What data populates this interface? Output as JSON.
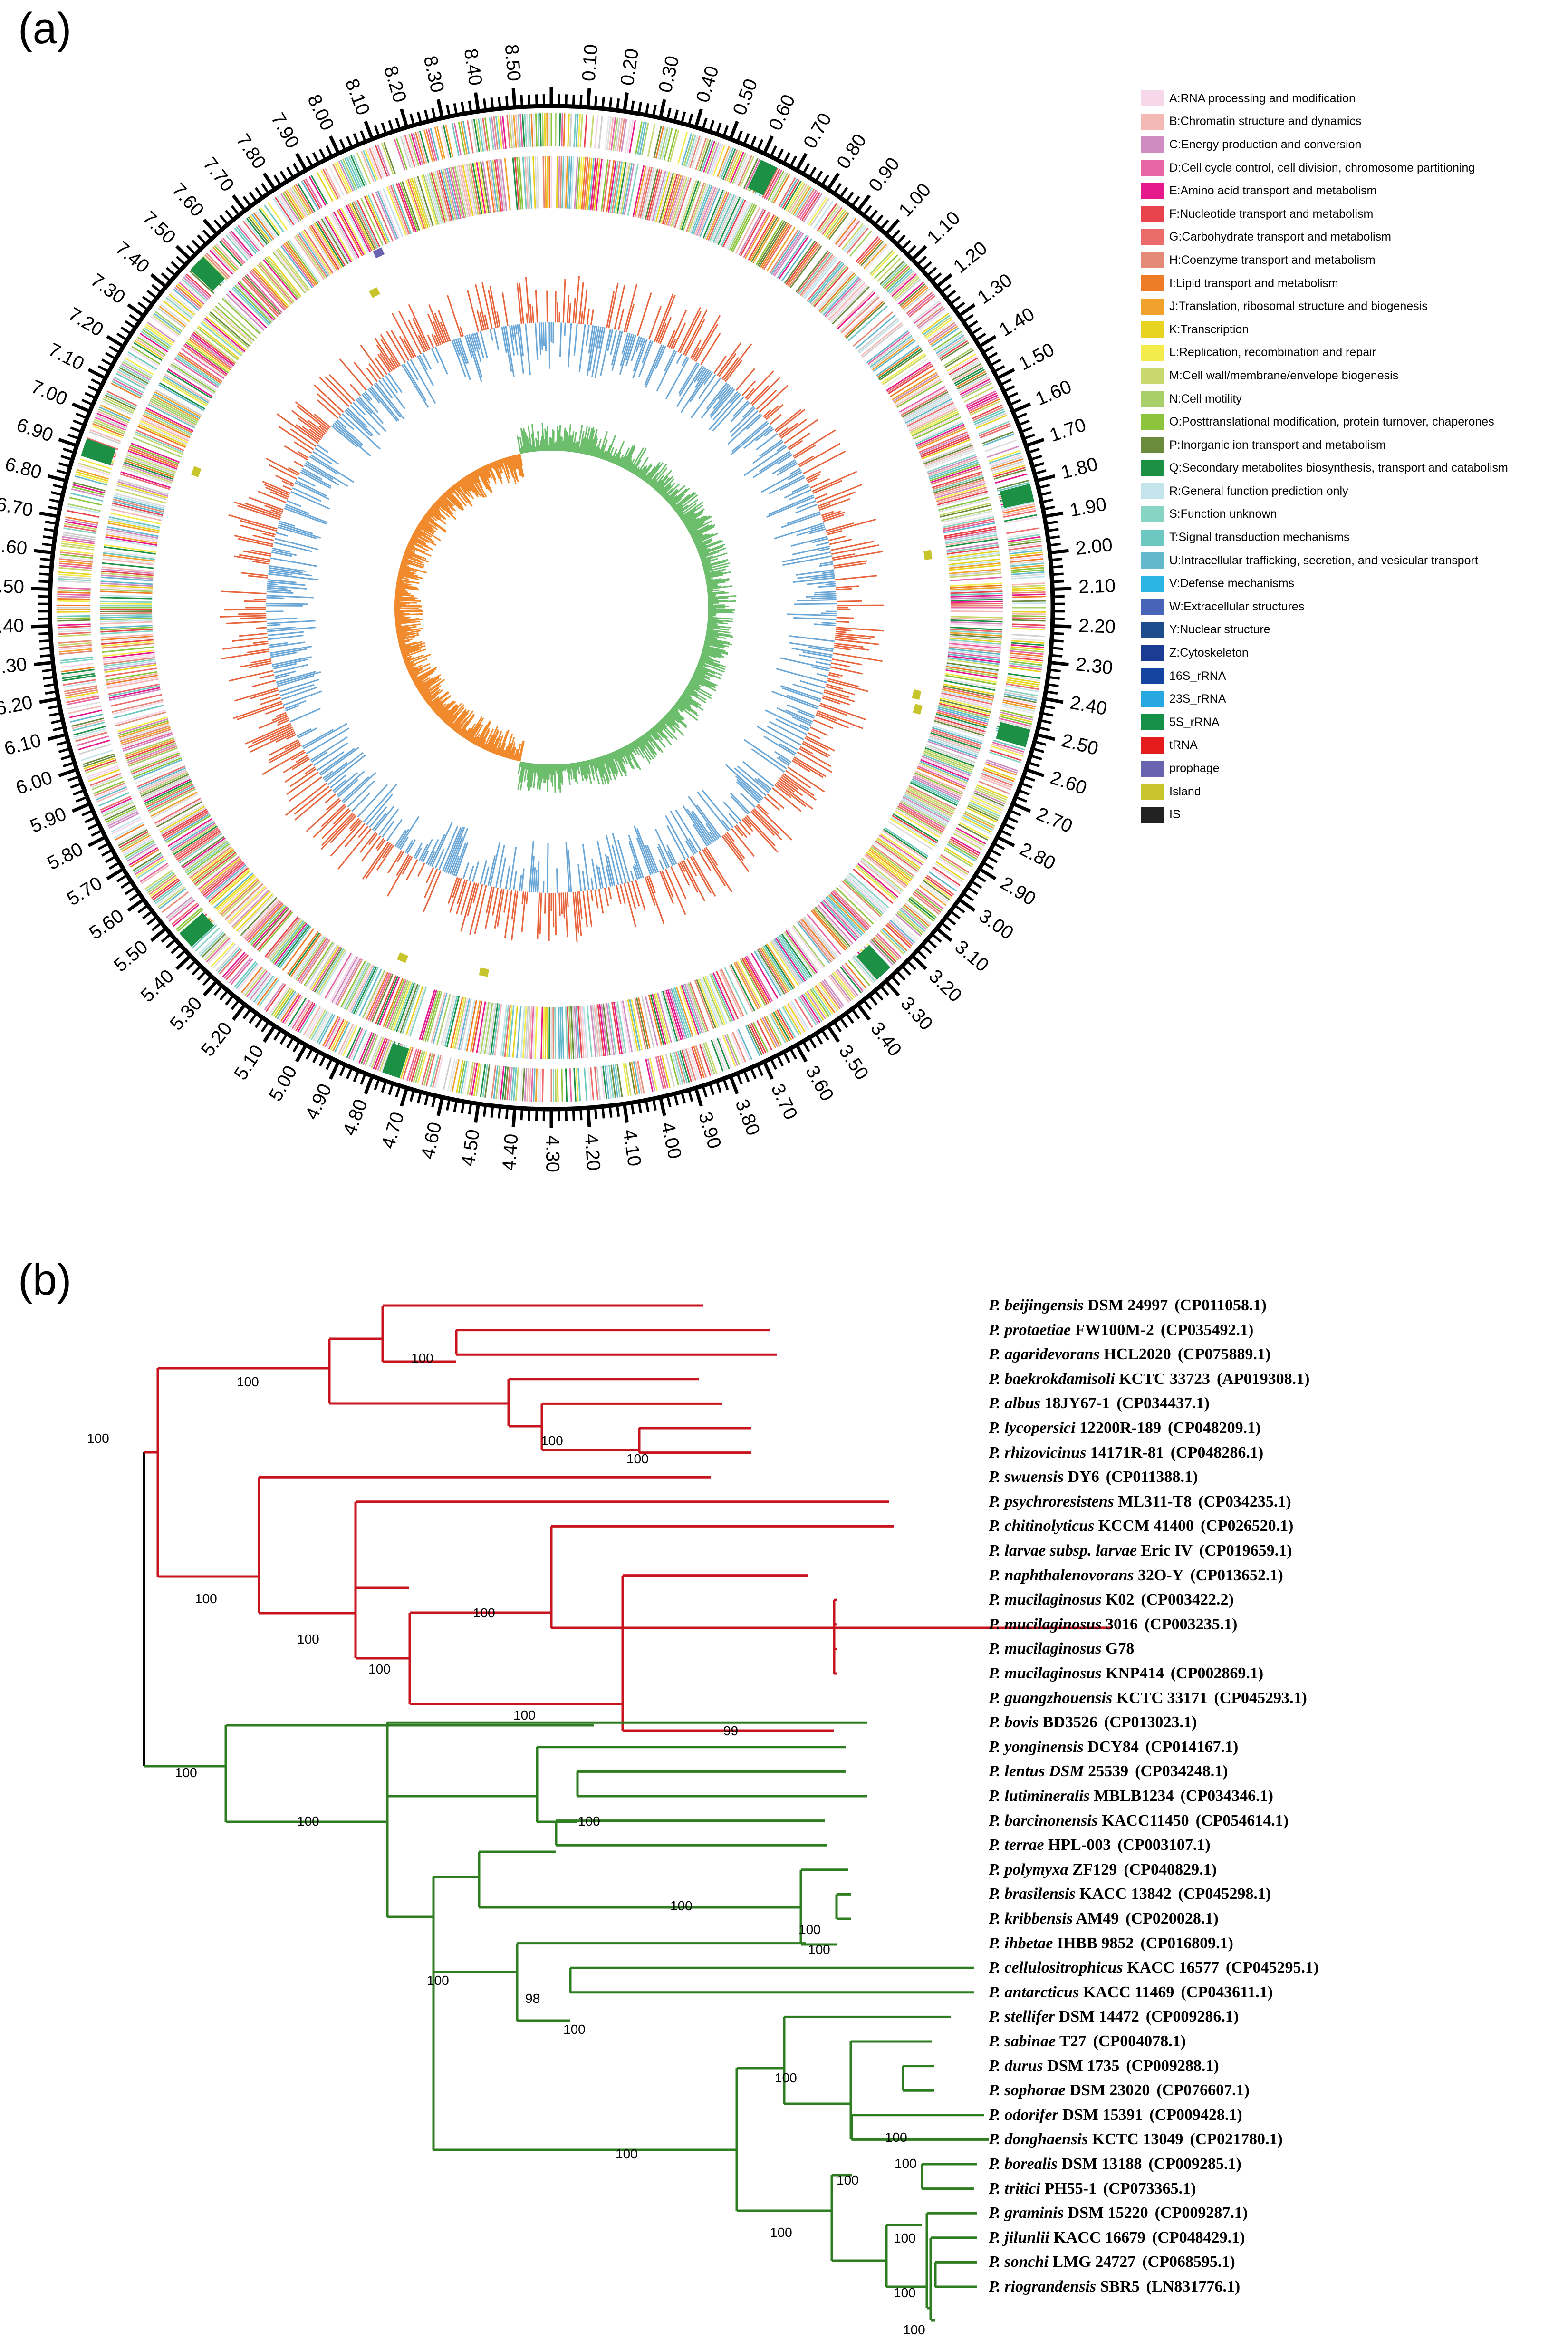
{
  "panel_a": {
    "label": "(a)",
    "ruler_ticks": [
      "0.10",
      "0.20",
      "0.30",
      "0.40",
      "0.50",
      "0.60",
      "0.70",
      "0.80",
      "0.90",
      "1.00",
      "1.10",
      "1.20",
      "1.30",
      "1.40",
      "1.50",
      "1.60",
      "1.70",
      "1.80",
      "1.90",
      "2.00",
      "2.10",
      "2.20",
      "2.30",
      "2.40",
      "2.50",
      "2.60",
      "2.70",
      "2.80",
      "2.90",
      "3.00",
      "3.10",
      "3.20",
      "3.30",
      "3.40",
      "3.50",
      "3.60",
      "3.70",
      "3.80",
      "3.90",
      "4.00",
      "4.10",
      "4.20",
      "4.30",
      "4.40",
      "4.50",
      "4.60",
      "4.70",
      "4.80",
      "4.90",
      "5.00",
      "5.10",
      "5.20",
      "5.30",
      "5.40",
      "5.50",
      "5.60",
      "5.70",
      "5.80",
      "5.90",
      "6.00",
      "6.10",
      "6.20",
      "6.30",
      "6.40",
      "6.50",
      "6.60",
      "6.70",
      "6.80",
      "6.90",
      "7.00",
      "7.10",
      "7.20",
      "7.30",
      "7.40",
      "7.50",
      "7.60",
      "7.70",
      "7.80",
      "7.90",
      "8.00",
      "8.10",
      "8.20",
      "8.30",
      "8.40",
      "8.50"
    ],
    "genome_length_mb": 8.6,
    "ring_colors": {
      "gc_skew_plus": "#e8643c",
      "gc_skew_minus": "#6aa6d6",
      "gc_inner_plus": "#6cbd6c",
      "gc_inner_minus": "#f08a2c",
      "outer_ring": "#000000"
    },
    "legend": [
      {
        "label": "A:RNA processing and modification",
        "color": "#f6d8ea"
      },
      {
        "label": "B:Chromatin structure and dynamics",
        "color": "#f4b9b4"
      },
      {
        "label": "C:Energy production and conversion",
        "color": "#d08cc0"
      },
      {
        "label": "D:Cell cycle control, cell division, chromosome partitioning",
        "color": "#e765a5"
      },
      {
        "label": "E:Amino acid transport and metabolism",
        "color": "#e6198c"
      },
      {
        "label": "F:Nucleotide transport and metabolism",
        "color": "#e8434c"
      },
      {
        "label": "G:Carbohydrate transport and metabolism",
        "color": "#ec6b6b"
      },
      {
        "label": "H:Coenzyme transport and metabolism",
        "color": "#e68a78"
      },
      {
        "label": "I:Lipid transport and metabolism",
        "color": "#ef7d28"
      },
      {
        "label": "J:Translation, ribosomal structure and biogenesis",
        "color": "#f0a22c"
      },
      {
        "label": "K:Transcription",
        "color": "#e8d420"
      },
      {
        "label": "L:Replication, recombination and repair",
        "color": "#f4ec4c"
      },
      {
        "label": "M:Cell wall/membrane/envelope biogenesis",
        "color": "#c8d86c"
      },
      {
        "label": "N:Cell motility",
        "color": "#a8d068"
      },
      {
        "label": "O:Posttranslational modification, protein turnover, chaperones",
        "color": "#8cc43c"
      },
      {
        "label": "P:Inorganic ion transport and metabolism",
        "color": "#6a8a3c"
      },
      {
        "label": "Q:Secondary metabolites biosynthesis, transport and catabolism",
        "color": "#1c9044"
      },
      {
        "label": "R:General function prediction only",
        "color": "#c4e4ec"
      },
      {
        "label": "S:Function unknown",
        "color": "#88d4c4"
      },
      {
        "label": "T:Signal transduction mechanisms",
        "color": "#6cc8c0"
      },
      {
        "label": "U:Intracellular trafficking, secretion, and vesicular transport",
        "color": "#64b8cc"
      },
      {
        "label": "V:Defense mechanisms",
        "color": "#2ab4e4"
      },
      {
        "label": "W:Extracellular structures",
        "color": "#4864b8"
      },
      {
        "label": "Y:Nuclear structure",
        "color": "#1c4c8c"
      },
      {
        "label": "Z:Cytoskeleton",
        "color": "#1c3c94"
      },
      {
        "label": "16S_rRNA",
        "color": "#1444a0"
      },
      {
        "label": "23S_rRNA",
        "color": "#28a8e0"
      },
      {
        "label": "5S_rRNA",
        "color": "#149048"
      },
      {
        "label": "tRNA",
        "color": "#e41c1c"
      },
      {
        "label": "prophage",
        "color": "#6a64b0"
      },
      {
        "label": "Island",
        "color": "#c8c42c"
      },
      {
        "label": "IS",
        "color": "#222222"
      }
    ]
  },
  "panel_b": {
    "label": "(b)",
    "red_color": "#c8141e",
    "green_color": "#2e7d20",
    "root_color": "#000000",
    "taxa": [
      {
        "italic": "P. beijingensis",
        "rest": "DSM 24997",
        "acc": "(CP011058.1)"
      },
      {
        "italic": "P. protaetiae",
        "rest": "FW100M-2",
        "acc": "(CP035492.1)"
      },
      {
        "italic": "P. agaridevorans",
        "rest": "HCL2020",
        "acc": "(CP075889.1)"
      },
      {
        "italic": "P. baekrokdamisoli",
        "rest": "KCTC 33723",
        "acc": "(AP019308.1)"
      },
      {
        "italic": "P. albus",
        "rest": "18JY67-1",
        "acc": "(CP034437.1)"
      },
      {
        "italic": "P. lycopersici",
        "rest": "12200R-189",
        "acc": "(CP048209.1)"
      },
      {
        "italic": "P. rhizovicinus",
        "rest": "14171R-81",
        "acc": "(CP048286.1)"
      },
      {
        "italic": "P. swuensis",
        "rest": "DY6",
        "acc": "(CP011388.1)"
      },
      {
        "italic": "P. psychroresistens",
        "rest": "ML311-T8",
        "acc": "(CP034235.1)"
      },
      {
        "italic": "P. chitinolyticus",
        "rest": "KCCM 41400",
        "acc": "(CP026520.1)"
      },
      {
        "italic": "P. larvae subsp. larvae",
        "rest": "Eric IV",
        "acc": "(CP019659.1)"
      },
      {
        "italic": "P. naphthalenovorans",
        "rest": "32O-Y",
        "acc": "(CP013652.1)"
      },
      {
        "italic": "P. mucilaginosus",
        "rest": "K02",
        "acc": "(CP003422.2)"
      },
      {
        "italic": "P. mucilaginosus",
        "rest": "3016",
        "acc": "(CP003235.1)"
      },
      {
        "italic": "P. mucilaginosus",
        "rest": "G78",
        "acc": ""
      },
      {
        "italic": "P. mucilaginosus",
        "rest": "KNP414",
        "acc": "(CP002869.1)"
      },
      {
        "italic": "P. guangzhouensis",
        "rest": "KCTC 33171",
        "acc": "(CP045293.1)"
      },
      {
        "italic": "P. bovis",
        "rest": "BD3526",
        "acc": "(CP013023.1)"
      },
      {
        "italic": "P. yonginensis",
        "rest": "DCY84",
        "acc": "(CP014167.1)"
      },
      {
        "italic": "P. lentus DSM",
        "rest": "25539",
        "acc": "(CP034248.1)"
      },
      {
        "italic": "P. lutimineralis",
        "rest": "MBLB1234",
        "acc": "(CP034346.1)"
      },
      {
        "italic": "P. barcinonensis",
        "rest": "KACC11450",
        "acc": "(CP054614.1)"
      },
      {
        "italic": "P. terrae",
        "rest": "HPL-003",
        "acc": "(CP003107.1)"
      },
      {
        "italic": "P. polymyxa",
        "rest": "ZF129",
        "acc": "(CP040829.1)"
      },
      {
        "italic": "P. brasilensis",
        "rest": "KACC 13842",
        "acc": "(CP045298.1)"
      },
      {
        "italic": "P. kribbensis",
        "rest": "AM49",
        "acc": "(CP020028.1)"
      },
      {
        "italic": "P. ihbetae",
        "rest": "IHBB 9852",
        "acc": "(CP016809.1)"
      },
      {
        "italic": "P. cellulositrophicus",
        "rest": "KACC 16577",
        "acc": "(CP045295.1)"
      },
      {
        "italic": "P. antarcticus",
        "rest": "KACC 11469",
        "acc": "(CP043611.1)"
      },
      {
        "italic": "P. stellifer",
        "rest": "DSM 14472",
        "acc": "(CP009286.1)"
      },
      {
        "italic": "P. sabinae",
        "rest": "T27",
        "acc": "(CP004078.1)"
      },
      {
        "italic": "P. durus",
        "rest": "DSM 1735",
        "acc": "(CP009288.1)"
      },
      {
        "italic": "P. sophorae",
        "rest": "DSM 23020",
        "acc": "(CP076607.1)"
      },
      {
        "italic": "P. odorifer",
        "rest": "DSM 15391",
        "acc": "(CP009428.1)"
      },
      {
        "italic": "P. donghaensis",
        "rest": "KCTC 13049",
        "acc": "(CP021780.1)"
      },
      {
        "italic": "P. borealis",
        "rest": "DSM 13188",
        "acc": "(CP009285.1)"
      },
      {
        "italic": "P. tritici",
        "rest": "PH55-1",
        "acc": "(CP073365.1)"
      },
      {
        "italic": "P. graminis",
        "rest": "DSM 15220",
        "acc": "(CP009287.1)"
      },
      {
        "italic": "P. jilunlii",
        "rest": "KACC 16679",
        "acc": "(CP048429.1)"
      },
      {
        "italic": "P. sonchi",
        "rest": "LMG 24727",
        "acc": "(CP068595.1)"
      },
      {
        "italic": "P. riograndensis",
        "rest": "SBR5",
        "acc": "(LN831776.1)"
      }
    ],
    "bootstrap_labels": [
      "100",
      "100",
      "100",
      "100",
      "100",
      "100",
      "100",
      "100",
      "100",
      "100",
      "99",
      "100",
      "100",
      "100",
      "100",
      "100",
      "100",
      "100",
      "98",
      "100",
      "100",
      "100",
      "100",
      "100",
      "100",
      "100",
      "100",
      "100",
      "100"
    ]
  }
}
